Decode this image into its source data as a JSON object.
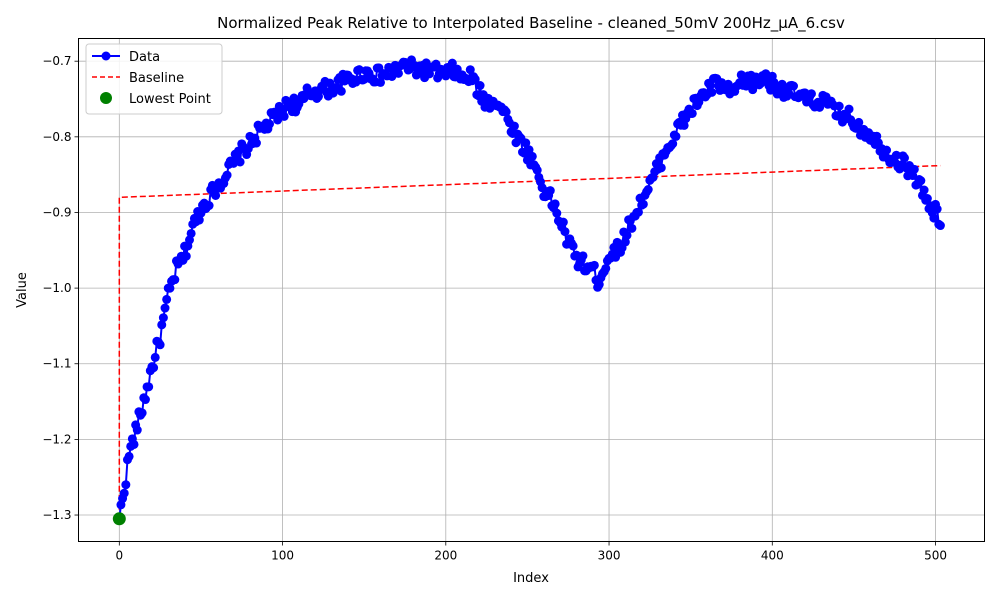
{
  "chart_data": {
    "type": "line",
    "title": "Normalized Peak Relative to Interpolated Baseline - cleaned_50mV 200Hz_µA_6.csv",
    "xlabel": "Index",
    "ylabel": "Value",
    "xlim": [
      -25,
      530
    ],
    "ylim": [
      -1.335,
      -0.67
    ],
    "xticks": [
      0,
      100,
      200,
      300,
      400,
      500
    ],
    "yticks": [
      -1.3,
      -1.2,
      -1.1,
      -1.0,
      -0.9,
      -0.8,
      -0.7
    ],
    "xtick_labels": [
      "0",
      "100",
      "200",
      "300",
      "400",
      "500"
    ],
    "ytick_labels": [
      "−1.3",
      "−1.2",
      "−1.1",
      "−1.0",
      "−0.9",
      "−0.8",
      "−0.7"
    ],
    "grid": true,
    "legend_position": "top-left",
    "legend": [
      "Data",
      "Baseline",
      "Lowest Point"
    ],
    "colors": {
      "data": "#0000ff",
      "baseline": "#ff0000",
      "lowest": "#008000"
    },
    "data_anchors": [
      [
        0,
        -1.305
      ],
      [
        3,
        -1.265
      ],
      [
        6,
        -1.22
      ],
      [
        10,
        -1.19
      ],
      [
        15,
        -1.15
      ],
      [
        20,
        -1.105
      ],
      [
        25,
        -1.065
      ],
      [
        30,
        -1.01
      ],
      [
        35,
        -0.975
      ],
      [
        40,
        -0.955
      ],
      [
        45,
        -0.92
      ],
      [
        50,
        -0.895
      ],
      [
        55,
        -0.88
      ],
      [
        60,
        -0.865
      ],
      [
        65,
        -0.85
      ],
      [
        70,
        -0.835
      ],
      [
        75,
        -0.82
      ],
      [
        80,
        -0.81
      ],
      [
        85,
        -0.795
      ],
      [
        90,
        -0.785
      ],
      [
        95,
        -0.775
      ],
      [
        100,
        -0.765
      ],
      [
        105,
        -0.755
      ],
      [
        110,
        -0.76
      ],
      [
        115,
        -0.745
      ],
      [
        120,
        -0.74
      ],
      [
        130,
        -0.735
      ],
      [
        140,
        -0.725
      ],
      [
        150,
        -0.715
      ],
      [
        160,
        -0.72
      ],
      [
        170,
        -0.712
      ],
      [
        175,
        -0.706
      ],
      [
        180,
        -0.71
      ],
      [
        190,
        -0.712
      ],
      [
        200,
        -0.718
      ],
      [
        205,
        -0.712
      ],
      [
        210,
        -0.725
      ],
      [
        215,
        -0.72
      ],
      [
        220,
        -0.74
      ],
      [
        225,
        -0.755
      ],
      [
        230,
        -0.75
      ],
      [
        235,
        -0.765
      ],
      [
        240,
        -0.785
      ],
      [
        245,
        -0.805
      ],
      [
        250,
        -0.82
      ],
      [
        255,
        -0.84
      ],
      [
        260,
        -0.87
      ],
      [
        265,
        -0.885
      ],
      [
        270,
        -0.91
      ],
      [
        275,
        -0.94
      ],
      [
        280,
        -0.96
      ],
      [
        285,
        -0.97
      ],
      [
        290,
        -0.975
      ],
      [
        293,
        -0.99
      ],
      [
        297,
        -0.975
      ],
      [
        300,
        -0.955
      ],
      [
        305,
        -0.95
      ],
      [
        310,
        -0.93
      ],
      [
        315,
        -0.905
      ],
      [
        320,
        -0.885
      ],
      [
        325,
        -0.865
      ],
      [
        330,
        -0.84
      ],
      [
        335,
        -0.815
      ],
      [
        340,
        -0.8
      ],
      [
        345,
        -0.78
      ],
      [
        350,
        -0.765
      ],
      [
        355,
        -0.75
      ],
      [
        360,
        -0.74
      ],
      [
        365,
        -0.73
      ],
      [
        370,
        -0.735
      ],
      [
        375,
        -0.745
      ],
      [
        380,
        -0.73
      ],
      [
        385,
        -0.725
      ],
      [
        390,
        -0.73
      ],
      [
        395,
        -0.72
      ],
      [
        400,
        -0.73
      ],
      [
        405,
        -0.735
      ],
      [
        410,
        -0.74
      ],
      [
        415,
        -0.745
      ],
      [
        420,
        -0.75
      ],
      [
        425,
        -0.755
      ],
      [
        430,
        -0.75
      ],
      [
        435,
        -0.76
      ],
      [
        440,
        -0.77
      ],
      [
        445,
        -0.77
      ],
      [
        450,
        -0.78
      ],
      [
        455,
        -0.79
      ],
      [
        460,
        -0.795
      ],
      [
        465,
        -0.81
      ],
      [
        470,
        -0.82
      ],
      [
        475,
        -0.83
      ],
      [
        480,
        -0.835
      ],
      [
        485,
        -0.845
      ],
      [
        490,
        -0.86
      ],
      [
        495,
        -0.89
      ],
      [
        500,
        -0.9
      ],
      [
        503,
        -0.915
      ]
    ],
    "baseline": {
      "x": [
        0,
        0,
        503
      ],
      "y": [
        -1.305,
        -0.88,
        -0.838
      ]
    },
    "lowest_point": {
      "x": 0,
      "y": -1.305
    }
  }
}
